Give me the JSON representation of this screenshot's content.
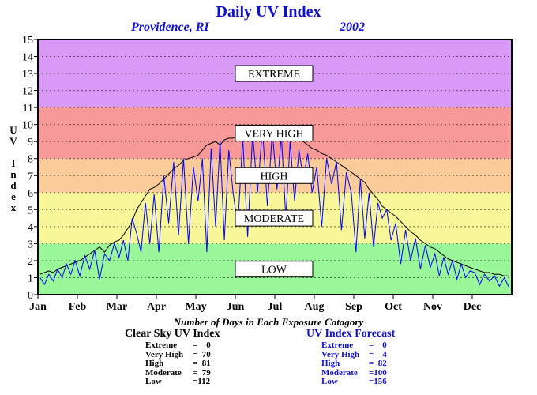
{
  "header": {
    "title": "Daily UV Index",
    "location": "Providence, RI",
    "year": "2002"
  },
  "chart_data": {
    "type": "line",
    "ylabel": "UV Index",
    "ylim": [
      0,
      15
    ],
    "yticks": [
      "0",
      "1",
      "2",
      "3",
      "4",
      "5",
      "6",
      "7",
      "8",
      "9",
      "10",
      "11",
      "12",
      "13",
      "14",
      "15"
    ],
    "xticks": [
      "Jan",
      "Feb",
      "Mar",
      "Apr",
      "May",
      "Jun",
      "Jul",
      "Aug",
      "Sep",
      "Oct",
      "Nov",
      "Dec"
    ],
    "grid": true,
    "bands": [
      {
        "label": "LOW",
        "from": 0,
        "to": 3,
        "color": "#99f799"
      },
      {
        "label": "MODERATE",
        "from": 3,
        "to": 6,
        "color": "#f7f799"
      },
      {
        "label": "HIGH",
        "from": 6,
        "to": 8,
        "color": "#fbcc99"
      },
      {
        "label": "VERY HIGH",
        "from": 8,
        "to": 11,
        "color": "#f79999"
      },
      {
        "label": "EXTREME",
        "from": 11,
        "to": 15,
        "color": "#d899f7"
      }
    ],
    "series": [
      {
        "key": "clear_sky",
        "color": "#000000",
        "monthly": [
          [
            1.2,
            1.3,
            1.4,
            1.3,
            1.5,
            1.6,
            1.7,
            1.8,
            1.9
          ],
          [
            2.0,
            2.2,
            2.4,
            2.6,
            2.8,
            2.5,
            2.9,
            3.1
          ],
          [
            3.2,
            3.5,
            3.9,
            4.3,
            5.0,
            5.4,
            5.8,
            6.2,
            6.3
          ],
          [
            6.5,
            6.8,
            7.1,
            7.4,
            7.6,
            7.9,
            8.0,
            8.1
          ],
          [
            8.2,
            8.5,
            8.8,
            8.9,
            9.0,
            8.8,
            9.1,
            9.2,
            9.2
          ],
          [
            9.3,
            9.5,
            9.6,
            9.8,
            9.4,
            9.7,
            9.9,
            9.7
          ],
          [
            9.8,
            9.6,
            9.7,
            9.5,
            9.4,
            9.2,
            9.0,
            8.8,
            8.6
          ],
          [
            8.5,
            8.3,
            8.2,
            8.0,
            7.8,
            7.6,
            7.4,
            7.2
          ],
          [
            7.0,
            6.8,
            6.6,
            6.2,
            5.9,
            5.6,
            5.2,
            5.0,
            4.8
          ],
          [
            4.6,
            4.3,
            4.0,
            3.7,
            3.5,
            3.2,
            3.0,
            2.8
          ],
          [
            2.7,
            2.5,
            2.3,
            2.1,
            2.0,
            1.9,
            1.8,
            1.7,
            1.6
          ],
          [
            1.5,
            1.4,
            1.3,
            1.3,
            1.2,
            1.2,
            1.1,
            1.1
          ]
        ]
      },
      {
        "key": "forecast",
        "color": "#0000ff",
        "monthly": [
          [
            1.0,
            0.6,
            1.2,
            0.8,
            1.5,
            1.0,
            1.8,
            1.2,
            2.0
          ],
          [
            1.1,
            2.3,
            1.5,
            2.6,
            0.9,
            2.4,
            2.0,
            3.0
          ],
          [
            2.2,
            3.2,
            2.0,
            4.5,
            3.6,
            2.5,
            5.4,
            3.0,
            5.9
          ],
          [
            2.5,
            7.0,
            4.2,
            7.8,
            3.5,
            8.0,
            3.0,
            7.5
          ],
          [
            5.5,
            8.0,
            2.5,
            8.6,
            4.0,
            9.0,
            3.2,
            8.5,
            6.0
          ],
          [
            4.0,
            9.2,
            3.4,
            9.5,
            6.0,
            9.8,
            5.2,
            9.6
          ],
          [
            6.2,
            9.4,
            4.5,
            9.0,
            5.5,
            8.5,
            6.8,
            8.3,
            6.0
          ],
          [
            7.5,
            4.0,
            8.0,
            6.5,
            7.8,
            3.8,
            7.2,
            6.0
          ],
          [
            2.5,
            6.8,
            3.3,
            6.0,
            2.8,
            5.4,
            4.5,
            5.0,
            3.2
          ],
          [
            4.2,
            1.8,
            3.8,
            2.0,
            3.3,
            1.5,
            2.9,
            1.6
          ],
          [
            2.4,
            1.1,
            2.2,
            1.2,
            2.0,
            0.9,
            1.8,
            1.0,
            1.4
          ],
          [
            1.3,
            0.6,
            1.2,
            0.8,
            1.1,
            0.5,
            1.0,
            0.4
          ]
        ]
      }
    ]
  },
  "counts": {
    "caption": "Number of Days in Each Exposure Catagory",
    "clear_sky": {
      "title": "Clear Sky UV Index",
      "rows": [
        {
          "label": "Extreme",
          "value": "=    0"
        },
        {
          "label": "Very High",
          "value": "=  70"
        },
        {
          "label": "High",
          "value": "=  81"
        },
        {
          "label": "Moderate",
          "value": "=  79"
        },
        {
          "label": "Low",
          "value": "=112"
        }
      ]
    },
    "forecast": {
      "title": "UV Index Forecast",
      "rows": [
        {
          "label": "Extreme",
          "value": "=    0"
        },
        {
          "label": "Very High",
          "value": "=    4"
        },
        {
          "label": "High",
          "value": "=  82"
        },
        {
          "label": "Moderate",
          "value": "=100"
        },
        {
          "label": "Low",
          "value": "=156"
        }
      ]
    }
  }
}
